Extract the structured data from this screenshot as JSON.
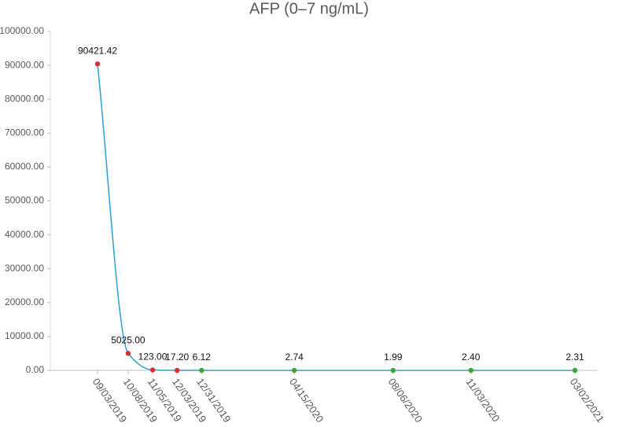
{
  "chart_data": {
    "type": "line",
    "title": "AFP (0–7 ng/mL)",
    "x": [
      "09/03/2019",
      "10/08/2019",
      "11/05/2019",
      "12/03/2019",
      "12/31/2019",
      "04/15/2020",
      "08/06/2020",
      "11/03/2020",
      "03/02/2021"
    ],
    "values": [
      90421.42,
      5025.0,
      123.0,
      17.2,
      6.12,
      2.74,
      1.99,
      2.4,
      2.31
    ],
    "value_labels": [
      "90421.42",
      "5025.00",
      "123.00",
      "17.20",
      "6.12",
      "2.74",
      "1.99",
      "2.40",
      "2.31"
    ],
    "color": "#2a9fd6",
    "point_colors": [
      "#d62f2f",
      "#d62f2f",
      "#d62f2f",
      "#d62f2f",
      "#3aa33a",
      "#3aa33a",
      "#3aa33a",
      "#3aa33a",
      "#3aa33a"
    ],
    "ylim": [
      0,
      100000
    ],
    "yticks": [
      {
        "value": 0,
        "label": "0.00"
      },
      {
        "value": 10000,
        "label": "10000.00"
      },
      {
        "value": 20000,
        "label": "20000.00"
      },
      {
        "value": 30000,
        "label": "30000.00"
      },
      {
        "value": 40000,
        "label": "40000.00"
      },
      {
        "value": 50000,
        "label": "50000.00"
      },
      {
        "value": 60000,
        "label": "60000.00"
      },
      {
        "value": 70000,
        "label": "70000.00"
      },
      {
        "value": 80000,
        "label": "80000.00"
      },
      {
        "value": 90000,
        "label": "90000.00"
      },
      {
        "value": 100000,
        "label": "100000.00"
      }
    ]
  }
}
